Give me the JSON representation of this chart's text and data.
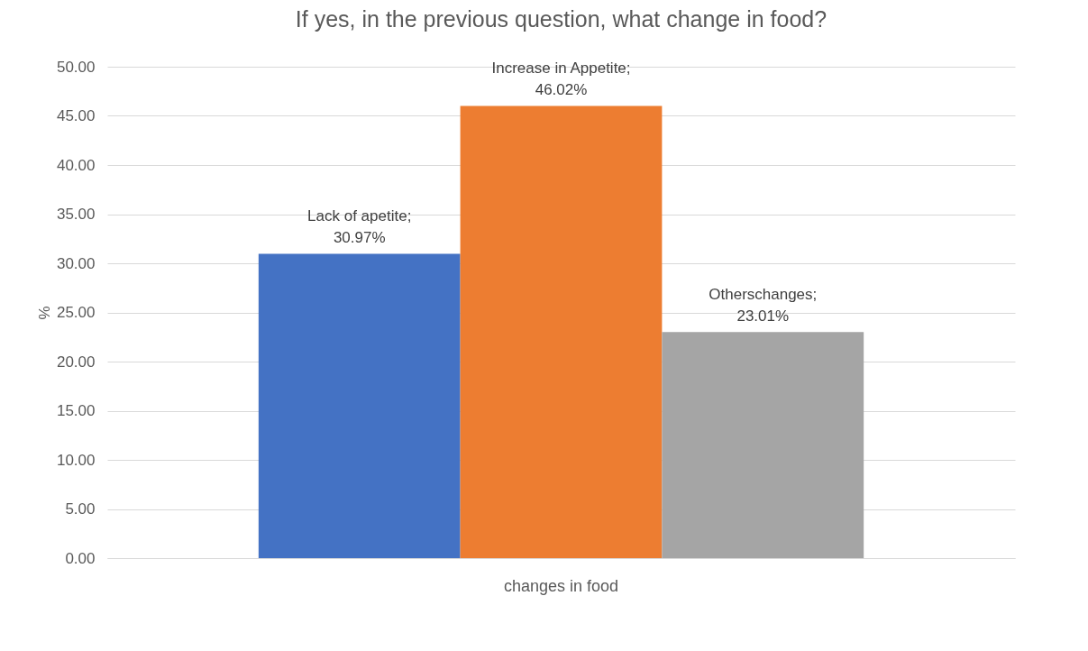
{
  "chart_data": {
    "type": "bar",
    "title": "If yes, in the previous question, what change in food?",
    "ylabel": "%",
    "categories": [
      "changes in food"
    ],
    "series": [
      {
        "color": "#4472c4",
        "values": [
          30.97
        ],
        "value_labels": [
          "Lack of apetite; 30.97%"
        ]
      },
      {
        "color": "#ed7d31",
        "values": [
          46.02
        ],
        "value_labels": [
          "Increase in Appetite; 46.02%"
        ]
      },
      {
        "color": "#a5a5a5",
        "values": [
          23.01
        ],
        "value_labels": [
          "Otherschanges; 23.01%"
        ]
      }
    ],
    "ylim": [
      0,
      50
    ],
    "yticks": [
      {
        "value": 0,
        "label": "0.00"
      },
      {
        "value": 5,
        "label": "5.00"
      },
      {
        "value": 10,
        "label": "10.00"
      },
      {
        "value": 15,
        "label": "15.00"
      },
      {
        "value": 20,
        "label": "20.00"
      },
      {
        "value": 25,
        "label": "25.00"
      },
      {
        "value": 30,
        "label": "30.00"
      },
      {
        "value": 35,
        "label": "35.00"
      },
      {
        "value": 40,
        "label": "40.00"
      },
      {
        "value": 45,
        "label": "45.00"
      },
      {
        "value": 50,
        "label": "50.00"
      }
    ],
    "grid": "y",
    "legend": false
  }
}
